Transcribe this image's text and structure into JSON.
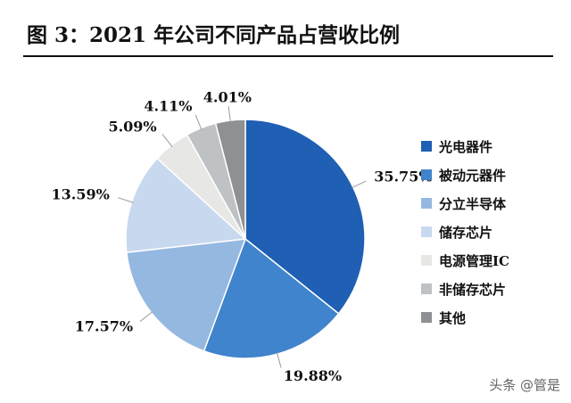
{
  "title": "图 3：2021 年公司不同产品占营收比例",
  "watermark": "头条 @管是",
  "chart_data": {
    "type": "pie",
    "categories": [
      "光电器件",
      "被动元器件",
      "分立半导体",
      "储存芯片",
      "电源管理IC",
      "非储存芯片",
      "其他"
    ],
    "values": [
      35.75,
      19.88,
      17.57,
      13.59,
      5.09,
      4.11,
      4.01
    ],
    "labels": [
      "35.75%",
      "19.88%",
      "17.57%",
      "13.59%",
      "5.09%",
      "4.11%",
      "4.01%"
    ],
    "colors": [
      "#1f5fb4",
      "#3f84cc",
      "#95b8e1",
      "#c8d8ef",
      "#e7e8e5",
      "#bfc2c4",
      "#8e9093"
    ],
    "legend_position": "right",
    "start": "top",
    "direction": "clockwise"
  }
}
